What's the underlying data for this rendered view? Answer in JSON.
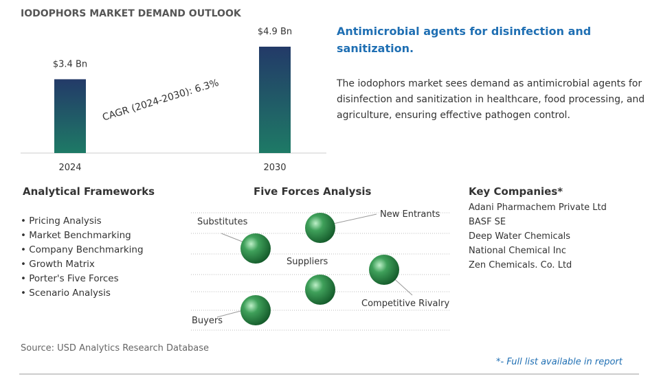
{
  "header": {
    "title": "IODOPHORS MARKET DEMAND OUTLOOK"
  },
  "chart_data": {
    "type": "bar",
    "categories": [
      "2024",
      "2030"
    ],
    "values": [
      3.4,
      4.9
    ],
    "value_labels": [
      "$3.4 Bn",
      "$4.9 Bn"
    ],
    "annotation": "CAGR (2024-2030):  6.3%"
  },
  "highlight": {
    "heading": "Antimicrobial agents for disinfection and sanitization.",
    "text": "The iodophors market sees demand as antimicrobial agents for disinfection and sanitization in healthcare, food processing, and agriculture, ensuring effective pathogen control."
  },
  "frameworks": {
    "heading": "Analytical Frameworks",
    "items": [
      "Pricing Analysis",
      "Market Benchmarking",
      "Company Benchmarking",
      "Growth Matrix",
      "Porter's Five Forces",
      "Scenario Analysis"
    ]
  },
  "five_forces": {
    "heading": "Five Forces Analysis",
    "items": [
      "Substitutes",
      "New Entrants",
      "Suppliers",
      "Competitive Rivalry",
      "Buyers"
    ]
  },
  "companies": {
    "heading": "Key Companies*",
    "items": [
      "Adani Pharmachem Private Ltd",
      "BASF SE",
      "Deep Water Chemicals",
      "National Chemical Inc",
      "Zen Chemicals. Co. Ltd"
    ]
  },
  "footer": {
    "source": "Source: USD Analytics Research Database",
    "note": "*- Full list available in report"
  }
}
